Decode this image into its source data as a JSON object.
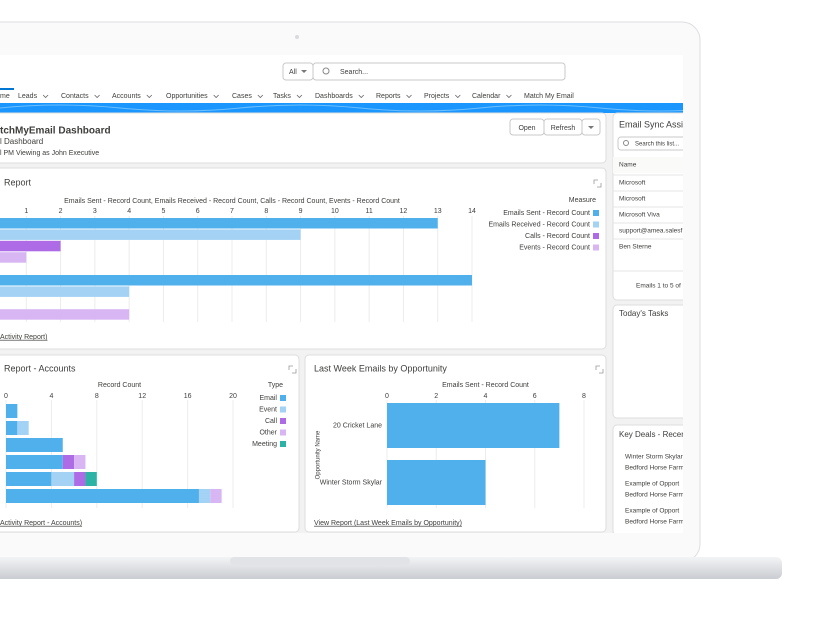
{
  "search": {
    "scope": "All",
    "placeholder": "Search..."
  },
  "nav": [
    "me",
    "Leads",
    "Contacts",
    "Accounts",
    "Opportunities",
    "Cases",
    "Tasks",
    "Dashboards",
    "Reports",
    "Projects",
    "Calendar",
    "Match My Email"
  ],
  "dashboard": {
    "title": "tchMyEmail Dashboard",
    "subtitle": "l Dashboard",
    "viewing": "l PM Viewing as John Executive",
    "buttons": [
      "Open",
      "Refresh"
    ]
  },
  "charts": [
    {
      "type": "bar",
      "orientation": "horizontal",
      "stacked": false,
      "title": "Report",
      "xlabel": "Emails Sent - Record Count, Emails Received - Record Count, Calls - Record Count, Events - Record Count",
      "xlim": [
        0,
        14
      ],
      "xticks": [
        1,
        2,
        3,
        4,
        5,
        6,
        7,
        8,
        9,
        10,
        11,
        12,
        13,
        14
      ],
      "grid": true,
      "legend_title": "Measure",
      "series": [
        {
          "name": "Emails Sent - Record Count",
          "color": "#4fb0ec",
          "values": [
            13,
            14
          ]
        },
        {
          "name": "Emails Received - Record Count",
          "color": "#a3d2f5",
          "values": [
            9,
            4
          ]
        },
        {
          "name": "Calls - Record Count",
          "color": "#ad6be6",
          "values": [
            2,
            null
          ]
        },
        {
          "name": "Events - Record Count",
          "color": "#d7b6f3",
          "values": [
            1,
            4
          ]
        }
      ],
      "link": "Activity Report)"
    },
    {
      "type": "bar",
      "orientation": "horizontal",
      "stacked": true,
      "title": "Report - Accounts",
      "xlabel": "Record Count",
      "xlim": [
        0,
        20
      ],
      "xticks": [
        0,
        4,
        8,
        12,
        16,
        20
      ],
      "grid": true,
      "legend_title": "Type",
      "series": [
        {
          "name": "Email",
          "color": "#4fb0ec",
          "values": [
            1,
            1,
            5,
            5,
            4,
            17
          ]
        },
        {
          "name": "Event",
          "color": "#a3d2f5",
          "values": [
            null,
            1,
            null,
            null,
            2,
            1
          ]
        },
        {
          "name": "Call",
          "color": "#ad6be6",
          "values": [
            null,
            null,
            null,
            1,
            1,
            null
          ]
        },
        {
          "name": "Other",
          "color": "#d7b6f3",
          "values": [
            null,
            null,
            null,
            1,
            null,
            1
          ]
        },
        {
          "name": "Meeting",
          "color": "#2db3a6",
          "values": [
            null,
            null,
            null,
            null,
            1,
            null
          ]
        }
      ],
      "link": "Activity Report - Accounts)"
    },
    {
      "type": "bar",
      "orientation": "horizontal",
      "stacked": false,
      "title": "Last Week Emails by Opportunity",
      "xlabel": "Emails Sent - Record Count",
      "ylabel": "Opportunity Name",
      "xlim": [
        0,
        8
      ],
      "xticks": [
        0,
        2,
        4,
        6,
        8
      ],
      "grid": true,
      "categories": [
        "20 Cricket Lane",
        "Winter Storm Skylar"
      ],
      "series": [
        {
          "name": "Emails Sent - Record Count",
          "color": "#4fb0ec",
          "values": [
            7,
            4
          ]
        }
      ],
      "link": "View Report (Last Week Emails by Opportunity)"
    }
  ],
  "sidebar": {
    "title": "Email Sync Assi",
    "search": "Search this list...",
    "column": "Name",
    "rows": [
      "Microsoft",
      "Microsoft",
      "Microsoft Viva",
      "support@amea.salesf",
      "Ben Sterne"
    ],
    "footer": "Emails 1 to 5 of",
    "tasks_title": "Today's Tasks",
    "deals_title": "Key Deals - Recen",
    "deals": [
      "Winter Storm Skylar",
      "Bedford Horse Farm",
      "Example of Opport",
      "Bedford Horse Farm",
      "Example of Opport",
      "Bedford Horse Farm"
    ]
  }
}
